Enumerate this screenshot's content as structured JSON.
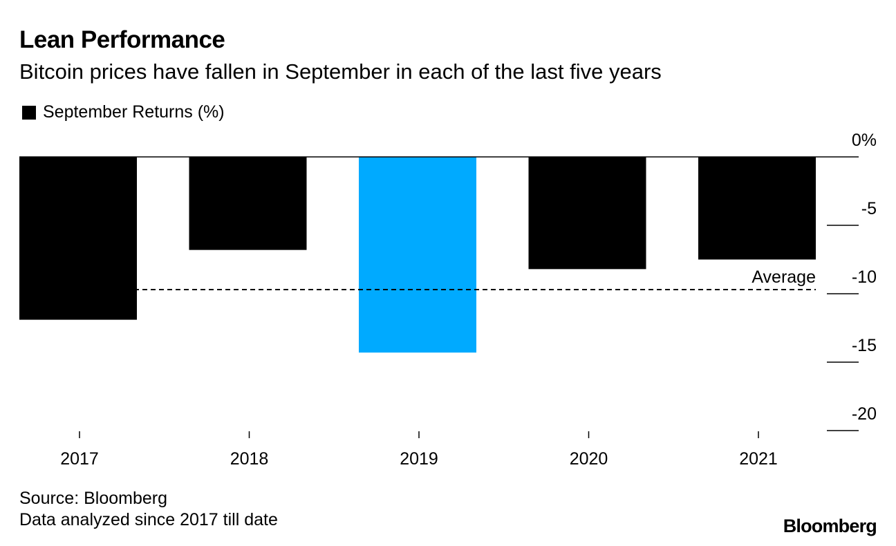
{
  "header": {
    "title": "Lean Performance",
    "subtitle": "Bitcoin prices have fallen in September in each of the last five years"
  },
  "legend": {
    "label": "September Returns (%)"
  },
  "footer": {
    "source": "Source: Bloomberg",
    "note": "Data analyzed since 2017 till date",
    "brand": "Bloomberg"
  },
  "colors": {
    "bar_default": "#000000",
    "bar_highlight": "#00aaff",
    "axis": "#000000"
  },
  "chart_data": {
    "type": "bar",
    "categories": [
      "2017",
      "2018",
      "2019",
      "2020",
      "2021"
    ],
    "series": [
      {
        "name": "September Returns (%)",
        "values": [
          -11.9,
          -6.8,
          -14.3,
          -8.2,
          -7.5
        ]
      }
    ],
    "highlight_category": "2019",
    "average": -9.7,
    "average_label": "Average",
    "ylim": [
      -20,
      0
    ],
    "yticks": [
      0,
      -5,
      -10,
      -15,
      -20
    ],
    "ytick_labels": [
      "0%",
      "-5",
      "-10",
      "-15",
      "-20"
    ],
    "axis_side": "right",
    "grid": false
  }
}
